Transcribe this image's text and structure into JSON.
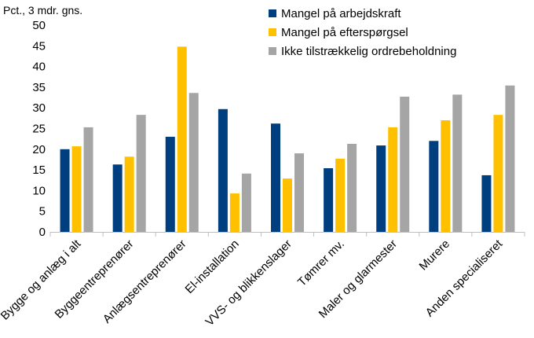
{
  "chart_data": {
    "type": "bar",
    "ylabel": "Pct., 3 mdr. gns.",
    "ylim": [
      0,
      50
    ],
    "yticks": [
      0,
      5,
      10,
      15,
      20,
      25,
      30,
      35,
      40,
      45,
      50
    ],
    "grid": false,
    "legend_position": "top-right",
    "categories": [
      "Bygge og anlæg i alt",
      "Byggeentreprenører",
      "Anlægsentreprenører",
      "El-installation",
      "VVS- og blikkenslager",
      "Tømrer mv.",
      "Maler og glarmester",
      "Murere",
      "Anden specialiseret"
    ],
    "series": [
      {
        "name": "Mangel på arbejdskraft",
        "color": "#003F7F",
        "values": [
          20.0,
          16.3,
          23.0,
          29.7,
          26.2,
          15.4,
          20.9,
          22.0,
          13.7
        ]
      },
      {
        "name": "Mangel på efterspørgsel",
        "color": "#FFC000",
        "values": [
          20.7,
          18.2,
          44.8,
          9.3,
          12.9,
          17.7,
          25.3,
          27.0,
          28.3
        ]
      },
      {
        "name": "Ikke tilstrækkelig ordrebeholdning",
        "color": "#A5A5A5",
        "values": [
          25.3,
          28.3,
          33.6,
          14.1,
          19.0,
          21.3,
          32.7,
          33.2,
          35.4
        ]
      }
    ]
  }
}
